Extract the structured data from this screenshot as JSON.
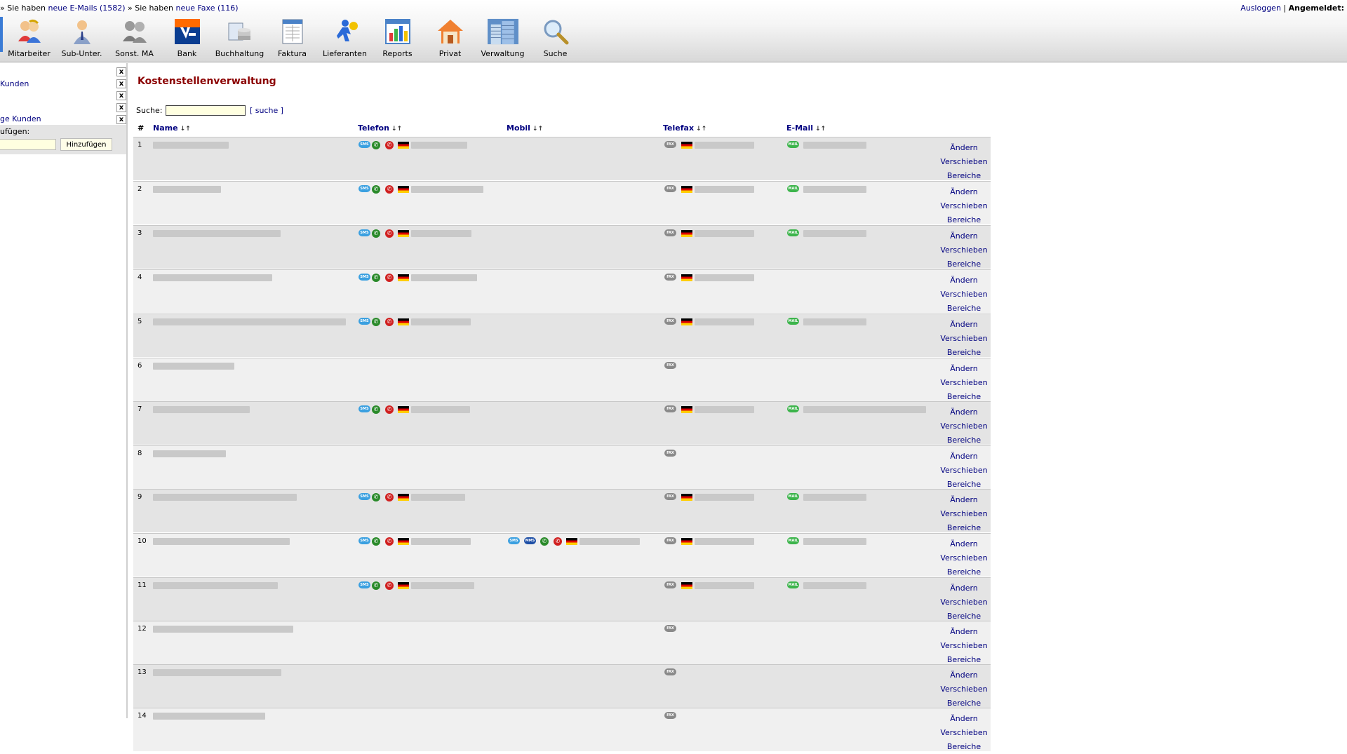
{
  "topbar": {
    "notice": {
      "prefix1": "» Sie haben ",
      "emails_link": "neue E-Mails (1582)",
      "prefix2": " » Sie haben ",
      "faxes_link": "neue Faxe (116)"
    },
    "user": {
      "logout": "Ausloggen",
      "separator": " | ",
      "logged_in": "Angemeldet:"
    },
    "tools": [
      {
        "label": "Mitarbeiter",
        "icon": "employees-icon"
      },
      {
        "label": "Sub-Unter.",
        "icon": "subcontractor-icon"
      },
      {
        "label": "Sonst. MA",
        "icon": "other-staff-icon"
      },
      {
        "label": "Bank",
        "icon": "bank-icon"
      },
      {
        "label": "Buchhaltung",
        "icon": "accounting-icon"
      },
      {
        "label": "Faktura",
        "icon": "invoice-icon"
      },
      {
        "label": "Lieferanten",
        "icon": "suppliers-icon"
      },
      {
        "label": "Reports",
        "icon": "reports-icon"
      },
      {
        "label": "Privat",
        "icon": "home-icon"
      },
      {
        "label": "Verwaltung",
        "icon": "building-icon"
      },
      {
        "label": "Suche",
        "icon": "magnifier-icon"
      }
    ]
  },
  "sidebar": {
    "link1": "Kunden",
    "link2": "ge Kunden",
    "close_glyph": "x",
    "add_label": "ufügen:",
    "add_button": "Hinzufügen",
    "add_value": ""
  },
  "main": {
    "title": "Kostenstellenverwaltung",
    "search_label": "Suche:",
    "search_value": "",
    "search_link": "[ suche ]"
  },
  "table": {
    "headers": {
      "num": "#",
      "name": "Name",
      "telefon": "Telefon",
      "mobil": "Mobil",
      "telefax": "Telefax",
      "email": "E-Mail",
      "sort_glyph": "↓↑"
    },
    "actions": {
      "edit": "Ändern",
      "move": "Verschieben",
      "areas": "Bereiche"
    },
    "icons": {
      "sms": "SMS",
      "mms": "MMS",
      "fax": "FAX",
      "mail": "MAIL",
      "call": "✆",
      "hang": "✆"
    },
    "rows": [
      {
        "num": "1",
        "phone": true,
        "mobile": false,
        "fax_number": true,
        "email": true
      },
      {
        "num": "2",
        "phone": true,
        "mobile": false,
        "fax_number": true,
        "email": true
      },
      {
        "num": "3",
        "phone": true,
        "mobile": false,
        "fax_number": true,
        "email": true
      },
      {
        "num": "4",
        "phone": true,
        "mobile": false,
        "fax_number": true,
        "email": false
      },
      {
        "num": "5",
        "phone": true,
        "mobile": false,
        "fax_number": true,
        "email": true
      },
      {
        "num": "6",
        "phone": false,
        "mobile": false,
        "fax_number": false,
        "email": false
      },
      {
        "num": "7",
        "phone": true,
        "mobile": false,
        "fax_number": true,
        "email": true
      },
      {
        "num": "8",
        "phone": false,
        "mobile": false,
        "fax_number": false,
        "email": false
      },
      {
        "num": "9",
        "phone": true,
        "mobile": false,
        "fax_number": true,
        "email": true
      },
      {
        "num": "10",
        "phone": true,
        "mobile": true,
        "fax_number": true,
        "email": true
      },
      {
        "num": "11",
        "phone": true,
        "mobile": false,
        "fax_number": true,
        "email": true
      },
      {
        "num": "12",
        "phone": false,
        "mobile": false,
        "fax_number": false,
        "email": false
      },
      {
        "num": "13",
        "phone": false,
        "mobile": false,
        "fax_number": false,
        "email": false
      },
      {
        "num": "14",
        "phone": false,
        "mobile": false,
        "fax_number": false,
        "email": false
      }
    ]
  }
}
